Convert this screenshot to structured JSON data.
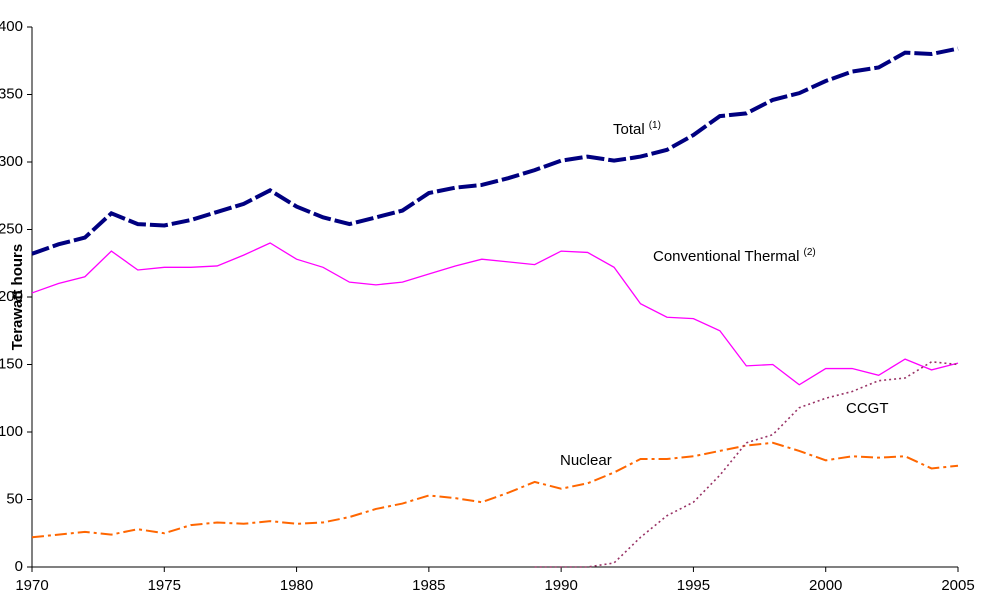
{
  "chart_data": {
    "type": "line",
    "y_label": "Terawatt hours",
    "x": [
      1970,
      1971,
      1972,
      1973,
      1974,
      1975,
      1976,
      1977,
      1978,
      1979,
      1980,
      1981,
      1982,
      1983,
      1984,
      1985,
      1986,
      1987,
      1988,
      1989,
      1990,
      1991,
      1992,
      1993,
      1994,
      1995,
      1996,
      1997,
      1998,
      1999,
      2000,
      2001,
      2002,
      2003,
      2004,
      2005
    ],
    "series": [
      {
        "name": "Total",
        "color": "#000080",
        "values": [
          232,
          239,
          244,
          262,
          254,
          253,
          257,
          263,
          269,
          279,
          267,
          259,
          254,
          259,
          264,
          277,
          281,
          283,
          288,
          294,
          301,
          304,
          301,
          304,
          309,
          320,
          334,
          336,
          346,
          351,
          360,
          367,
          370,
          381,
          380,
          384
        ]
      },
      {
        "name": "Conventional Thermal",
        "color": "#ff00ff",
        "values": [
          203,
          210,
          215,
          234,
          220,
          222,
          222,
          223,
          231,
          240,
          228,
          222,
          211,
          209,
          211,
          217,
          223,
          228,
          226,
          224,
          234,
          233,
          222,
          195,
          185,
          184,
          175,
          149,
          150,
          135,
          147,
          147,
          142,
          154,
          146,
          151
        ]
      },
      {
        "name": "Nuclear",
        "color": "#ff6600",
        "values": [
          22,
          24,
          26,
          24,
          28,
          25,
          31,
          33,
          32,
          34,
          32,
          33,
          37,
          43,
          47,
          53,
          51,
          48,
          55,
          63,
          58,
          62,
          70,
          80,
          80,
          82,
          86,
          90,
          92,
          86,
          79,
          82,
          81,
          82,
          73,
          75
        ]
      },
      {
        "name": "CCGT",
        "color": "#993366",
        "values": [
          null,
          null,
          null,
          null,
          null,
          null,
          null,
          null,
          null,
          null,
          null,
          null,
          null,
          null,
          null,
          null,
          null,
          null,
          null,
          0,
          0,
          0,
          3,
          22,
          38,
          48,
          68,
          92,
          98,
          118,
          125,
          130,
          138,
          140,
          152,
          150
        ]
      }
    ],
    "annotations": [
      {
        "text": "Total",
        "sup": "(1)"
      },
      {
        "text": "Conventional Thermal",
        "sup": "(2)"
      },
      {
        "text": "Nuclear"
      },
      {
        "text": "CCGT"
      }
    ],
    "xlim": [
      1970,
      2005
    ],
    "xticks": [
      1970,
      1975,
      1980,
      1985,
      1990,
      1995,
      2000,
      2005
    ],
    "ylim": [
      0,
      400
    ],
    "yticks": [
      0,
      50,
      100,
      150,
      200,
      250,
      300,
      350,
      400
    ],
    "grid": false
  }
}
